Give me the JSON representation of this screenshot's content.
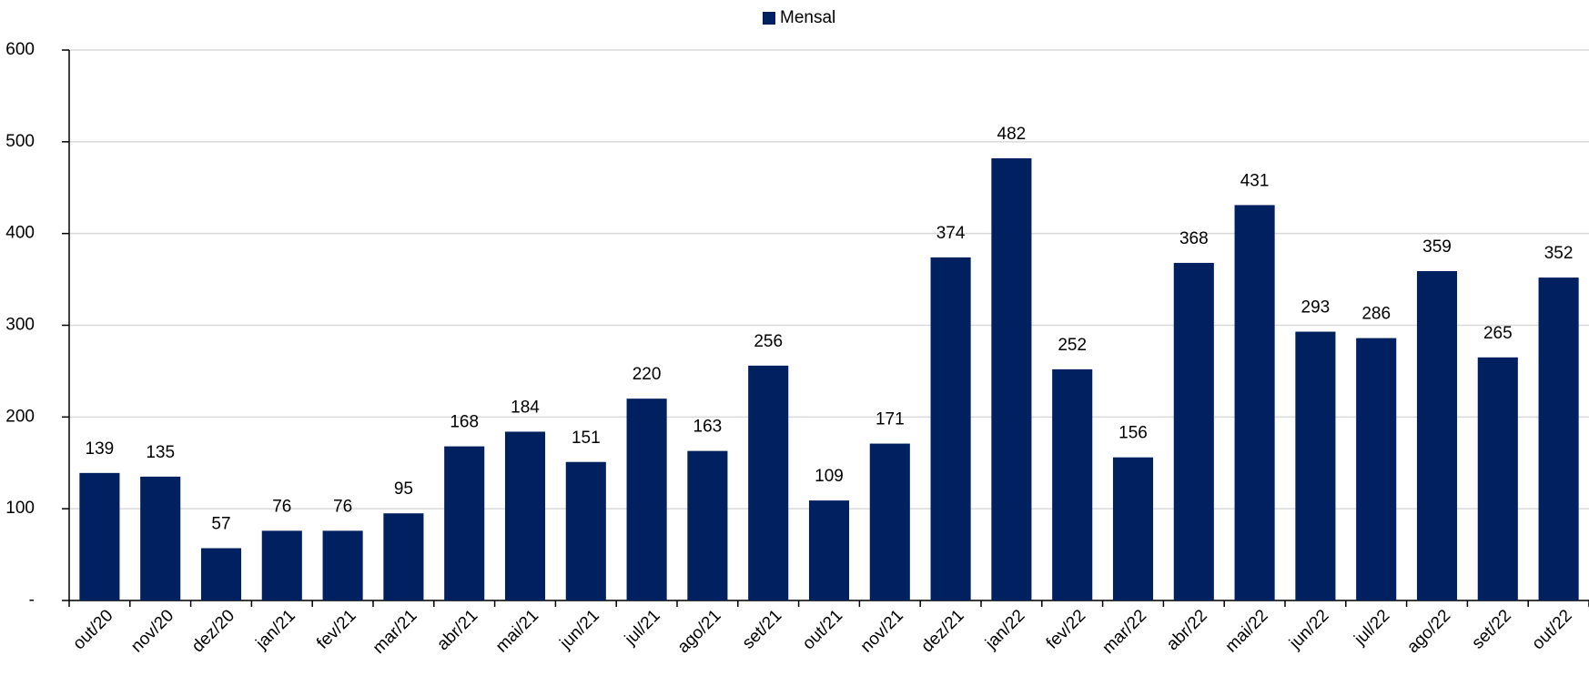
{
  "chart_data": {
    "type": "bar",
    "categories": [
      "out/20",
      "nov/20",
      "dez/20",
      "jan/21",
      "fev/21",
      "mar/21",
      "abr/21",
      "mai/21",
      "jun/21",
      "jul/21",
      "ago/21",
      "set/21",
      "out/21",
      "nov/21",
      "dez/21",
      "jan/22",
      "fev/22",
      "mar/22",
      "abr/22",
      "mai/22",
      "jun/22",
      "jul/22",
      "ago/22",
      "set/22",
      "out/22"
    ],
    "series": [
      {
        "name": "Mensal",
        "color": "#002060",
        "values": [
          139,
          135,
          57,
          76,
          76,
          95,
          168,
          184,
          151,
          220,
          163,
          256,
          109,
          171,
          374,
          482,
          252,
          156,
          368,
          431,
          293,
          286,
          359,
          265,
          352
        ]
      }
    ],
    "ylim": [
      0,
      600
    ],
    "yticks": [
      {
        "value": 0,
        "label": "-"
      },
      100,
      200,
      300,
      400,
      500,
      600
    ],
    "grid": true,
    "legend": "top"
  }
}
